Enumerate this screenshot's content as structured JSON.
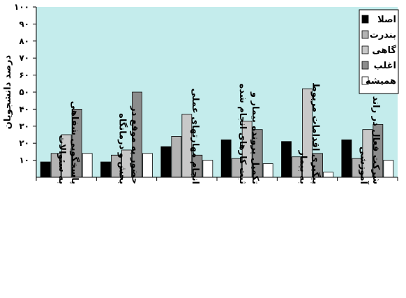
{
  "chart_data": {
    "type": "bar",
    "ylabel": "درصد دانشجویان",
    "ylim": [
      0,
      100
    ],
    "yticks": [
      "۱۰۰",
      "۹۰",
      "۸۰",
      "۷۰",
      "۶۰",
      "۵۰",
      "۴۰",
      "۳۰",
      "۲۰",
      "۱۰"
    ],
    "categories": [
      [
        "پاسخگویی شفاهی",
        "به سئوالات"
      ],
      [
        "حضور به موقع در",
        "بخش و درمانگاه"
      ],
      [
        "انجام مهارتهای عملی"
      ],
      [
        "تکمیل پرونده بیمار و",
        "ثبت کارهای انجام شده"
      ],
      [
        "پیگیری اقدامات مربوط",
        "به بیمار"
      ],
      [
        "شرکت فعال در راند",
        "آموزشی"
      ]
    ],
    "series": [
      {
        "name": "اصلا",
        "color": "#000000",
        "values": [
          9,
          9,
          18,
          22,
          21,
          22
        ]
      },
      {
        "name": "بندرت",
        "color": "#b3b3b3",
        "values": [
          14,
          13,
          24,
          11,
          12,
          11
        ]
      },
      {
        "name": "گاهی",
        "color": "#c8c8c8",
        "values": [
          25,
          16,
          37,
          33,
          52,
          28
        ]
      },
      {
        "name": "اغلب",
        "color": "#8c8c8c",
        "values": [
          40,
          50,
          13,
          28,
          14,
          31
        ]
      },
      {
        "name": "همیشه",
        "color": "#ffffff",
        "values": [
          14,
          14,
          10,
          8,
          3,
          10
        ]
      }
    ],
    "plot_background": "#c4ecec",
    "legend": "top-right",
    "grid": false
  }
}
